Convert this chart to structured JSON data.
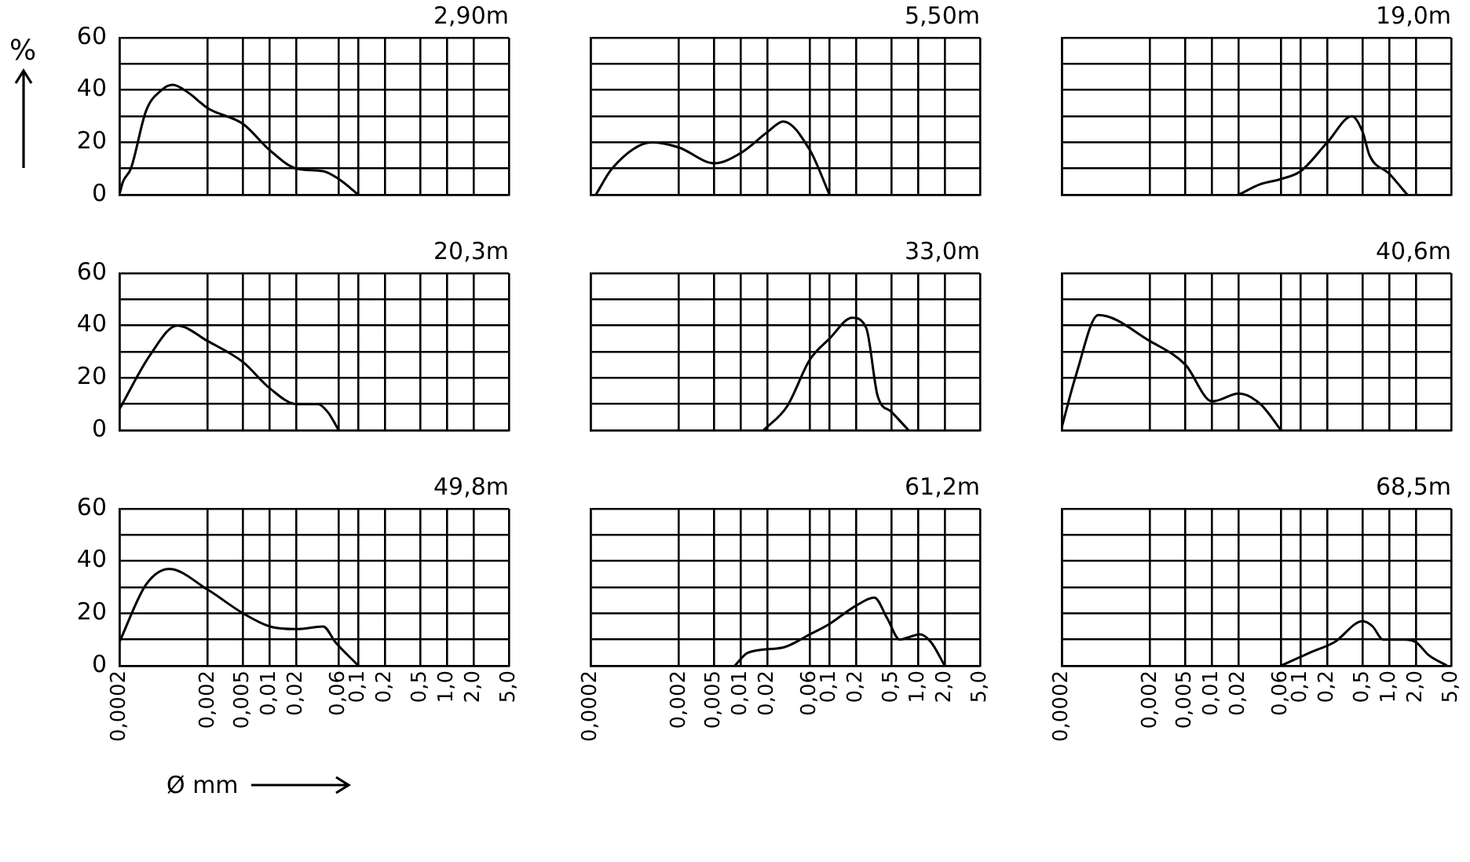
{
  "chart_data": [
    {
      "type": "line",
      "title": "2,90m",
      "ylabel": "%",
      "x": [
        0.0002,
        0.00022,
        0.00027,
        0.0004,
        0.0006,
        0.0008,
        0.0012,
        0.002,
        0.005,
        0.01,
        0.02,
        0.04,
        0.06,
        0.1
      ],
      "values": [
        0,
        5,
        10,
        32,
        40,
        42,
        39,
        33,
        27,
        17,
        10,
        9,
        6,
        0
      ],
      "color": "#000000",
      "marker": "none",
      "log": "x",
      "grid": true,
      "xlim": [
        0.0002,
        5
      ],
      "xticks": [
        {
          "value": 0.0002,
          "label": null
        },
        {
          "value": 0.002,
          "label": null
        },
        {
          "value": 0.005,
          "label": null
        },
        {
          "value": 0.01,
          "label": null
        },
        {
          "value": 0.02,
          "label": null
        },
        {
          "value": 0.06,
          "label": null
        },
        {
          "value": 0.1,
          "label": null
        },
        {
          "value": 0.2,
          "label": null
        },
        {
          "value": 0.5,
          "label": null
        },
        {
          "value": 1,
          "label": null
        },
        {
          "value": 2,
          "label": null
        },
        {
          "value": 5,
          "label": null
        }
      ],
      "ylim": [
        0,
        60
      ],
      "yticks": [
        0,
        {
          "value": 10,
          "label": null
        },
        20,
        {
          "value": 30,
          "label": null
        },
        40,
        {
          "value": 50,
          "label": null
        },
        60
      ],
      "tick_labels": "y"
    },
    {
      "type": "line",
      "title": "5,50m",
      "x": [
        0.00023,
        0.00035,
        0.001,
        0.002,
        0.005,
        0.01,
        0.02,
        0.03,
        0.06,
        0.1
      ],
      "values": [
        0,
        10,
        20,
        18,
        12,
        16,
        24,
        28,
        17,
        0
      ],
      "color": "#000000",
      "marker": "none",
      "log": "x",
      "grid": true,
      "xlim": [
        0.0002,
        5
      ],
      "xticks": [
        {
          "value": 0.0002,
          "label": null
        },
        {
          "value": 0.002,
          "label": null
        },
        {
          "value": 0.005,
          "label": null
        },
        {
          "value": 0.01,
          "label": null
        },
        {
          "value": 0.02,
          "label": null
        },
        {
          "value": 0.06,
          "label": null
        },
        {
          "value": 0.1,
          "label": null
        },
        {
          "value": 0.2,
          "label": null
        },
        {
          "value": 0.5,
          "label": null
        },
        {
          "value": 1,
          "label": null
        },
        {
          "value": 2,
          "label": null
        },
        {
          "value": 5,
          "label": null
        }
      ],
      "ylim": [
        0,
        60
      ],
      "yticks": [
        0,
        {
          "value": 10,
          "label": null
        },
        20,
        {
          "value": 30,
          "label": null
        },
        40,
        {
          "value": 50,
          "label": null
        },
        60
      ],
      "tick_labels": false
    },
    {
      "type": "line",
      "title": "19,0m",
      "x": [
        0.02,
        0.035,
        0.06,
        0.1,
        0.2,
        0.38,
        0.5,
        0.6,
        1,
        1.6
      ],
      "values": [
        0,
        4,
        6,
        9,
        20,
        30,
        24,
        15,
        8,
        0
      ],
      "color": "#000000",
      "marker": "none",
      "log": "x",
      "grid": true,
      "xlim": [
        0.0002,
        5
      ],
      "xticks": [
        {
          "value": 0.0002,
          "label": null
        },
        {
          "value": 0.002,
          "label": null
        },
        {
          "value": 0.005,
          "label": null
        },
        {
          "value": 0.01,
          "label": null
        },
        {
          "value": 0.02,
          "label": null
        },
        {
          "value": 0.06,
          "label": null
        },
        {
          "value": 0.1,
          "label": null
        },
        {
          "value": 0.2,
          "label": null
        },
        {
          "value": 0.5,
          "label": null
        },
        {
          "value": 1,
          "label": null
        },
        {
          "value": 2,
          "label": null
        },
        {
          "value": 5,
          "label": null
        }
      ],
      "ylim": [
        0,
        60
      ],
      "yticks": [
        0,
        {
          "value": 10,
          "label": null
        },
        20,
        {
          "value": 30,
          "label": null
        },
        40,
        {
          "value": 50,
          "label": null
        },
        60
      ],
      "tick_labels": false
    },
    {
      "type": "line",
      "title": "20,3m",
      "x": [
        0.0002,
        0.00045,
        0.0009,
        0.002,
        0.005,
        0.01,
        0.02,
        0.035,
        0.045,
        0.06
      ],
      "values": [
        8,
        29,
        40,
        34,
        26,
        16,
        10,
        10,
        7,
        0
      ],
      "color": "#000000",
      "marker": "none",
      "log": "x",
      "grid": true,
      "xlim": [
        0.0002,
        5
      ],
      "xticks": [
        {
          "value": 0.0002,
          "label": null
        },
        {
          "value": 0.002,
          "label": null
        },
        {
          "value": 0.005,
          "label": null
        },
        {
          "value": 0.01,
          "label": null
        },
        {
          "value": 0.02,
          "label": null
        },
        {
          "value": 0.06,
          "label": null
        },
        {
          "value": 0.1,
          "label": null
        },
        {
          "value": 0.2,
          "label": null
        },
        {
          "value": 0.5,
          "label": null
        },
        {
          "value": 1,
          "label": null
        },
        {
          "value": 2,
          "label": null
        },
        {
          "value": 5,
          "label": null
        }
      ],
      "ylim": [
        0,
        60
      ],
      "yticks": [
        0,
        {
          "value": 10,
          "label": null
        },
        20,
        {
          "value": 30,
          "label": null
        },
        40,
        {
          "value": 50,
          "label": null
        },
        60
      ],
      "tick_labels": "y"
    },
    {
      "type": "line",
      "title": "33,0m",
      "x": [
        0.018,
        0.033,
        0.06,
        0.1,
        0.18,
        0.26,
        0.35,
        0.5,
        0.78
      ],
      "values": [
        0,
        9,
        27,
        35,
        43,
        39,
        13,
        7,
        0
      ],
      "color": "#000000",
      "marker": "none",
      "log": "x",
      "grid": true,
      "xlim": [
        0.0002,
        5
      ],
      "xticks": [
        {
          "value": 0.0002,
          "label": null
        },
        {
          "value": 0.002,
          "label": null
        },
        {
          "value": 0.005,
          "label": null
        },
        {
          "value": 0.01,
          "label": null
        },
        {
          "value": 0.02,
          "label": null
        },
        {
          "value": 0.06,
          "label": null
        },
        {
          "value": 0.1,
          "label": null
        },
        {
          "value": 0.2,
          "label": null
        },
        {
          "value": 0.5,
          "label": null
        },
        {
          "value": 1,
          "label": null
        },
        {
          "value": 2,
          "label": null
        },
        {
          "value": 5,
          "label": null
        }
      ],
      "ylim": [
        0,
        60
      ],
      "yticks": [
        0,
        {
          "value": 10,
          "label": null
        },
        20,
        {
          "value": 30,
          "label": null
        },
        40,
        {
          "value": 50,
          "label": null
        },
        60
      ],
      "tick_labels": false
    },
    {
      "type": "line",
      "title": "40,6m",
      "x": [
        0.0002,
        0.00029,
        0.00052,
        0.002,
        0.005,
        0.01,
        0.02,
        0.035,
        0.06
      ],
      "values": [
        1,
        21,
        44,
        34,
        25,
        11,
        14,
        10,
        0
      ],
      "color": "#000000",
      "marker": "none",
      "log": "x",
      "grid": true,
      "xlim": [
        0.0002,
        5
      ],
      "xticks": [
        {
          "value": 0.0002,
          "label": null
        },
        {
          "value": 0.002,
          "label": null
        },
        {
          "value": 0.005,
          "label": null
        },
        {
          "value": 0.01,
          "label": null
        },
        {
          "value": 0.02,
          "label": null
        },
        {
          "value": 0.06,
          "label": null
        },
        {
          "value": 0.1,
          "label": null
        },
        {
          "value": 0.2,
          "label": null
        },
        {
          "value": 0.5,
          "label": null
        },
        {
          "value": 1,
          "label": null
        },
        {
          "value": 2,
          "label": null
        },
        {
          "value": 5,
          "label": null
        }
      ],
      "ylim": [
        0,
        60
      ],
      "yticks": [
        0,
        {
          "value": 10,
          "label": null
        },
        20,
        {
          "value": 30,
          "label": null
        },
        40,
        {
          "value": 50,
          "label": null
        },
        60
      ],
      "tick_labels": false
    },
    {
      "type": "line",
      "title": "49,8m",
      "xlabel": "Ø mm",
      "x": [
        0.0002,
        0.0004,
        0.00073,
        0.002,
        0.005,
        0.01,
        0.02,
        0.04,
        0.055,
        0.1
      ],
      "values": [
        9,
        31,
        37,
        29,
        20,
        15,
        14,
        15,
        9,
        0
      ],
      "color": "#000000",
      "marker": "none",
      "log": "x",
      "grid": true,
      "xlim": [
        0.0002,
        5
      ],
      "xticks": [
        {
          "value": 0.0002,
          "label": "0,0002"
        },
        {
          "value": 0.002,
          "label": "0,002"
        },
        {
          "value": 0.005,
          "label": "0,005"
        },
        {
          "value": 0.01,
          "label": "0,01"
        },
        {
          "value": 0.02,
          "label": "0,02"
        },
        {
          "value": 0.06,
          "label": "0,06"
        },
        {
          "value": 0.1,
          "label": "0,1"
        },
        {
          "value": 0.2,
          "label": "0,2"
        },
        {
          "value": 0.5,
          "label": "0,5"
        },
        {
          "value": 1,
          "label": "1,0"
        },
        {
          "value": 2,
          "label": "2,0"
        },
        {
          "value": 5,
          "label": "5,0"
        }
      ],
      "ylim": [
        0,
        60
      ],
      "yticks": [
        0,
        {
          "value": 10,
          "label": null
        },
        20,
        {
          "value": 30,
          "label": null
        },
        40,
        {
          "value": 50,
          "label": null
        },
        60
      ]
    },
    {
      "type": "line",
      "title": "61,2m",
      "x": [
        0.0085,
        0.012,
        0.03,
        0.06,
        0.1,
        0.2,
        0.32,
        0.45,
        0.62,
        0.8,
        1.05,
        1.4,
        2
      ],
      "values": [
        0,
        5,
        7,
        12,
        16,
        23,
        26,
        18,
        10,
        11,
        12,
        9,
        0
      ],
      "color": "#000000",
      "marker": "none",
      "log": "x",
      "grid": true,
      "xlim": [
        0.0002,
        5
      ],
      "xticks": [
        {
          "value": 0.0002,
          "label": "0,0002"
        },
        {
          "value": 0.002,
          "label": "0,002"
        },
        {
          "value": 0.005,
          "label": "0,005"
        },
        {
          "value": 0.01,
          "label": "0,01"
        },
        {
          "value": 0.02,
          "label": "0,02"
        },
        {
          "value": 0.06,
          "label": "0,06"
        },
        {
          "value": 0.1,
          "label": "0,1"
        },
        {
          "value": 0.2,
          "label": "0,2"
        },
        {
          "value": 0.5,
          "label": "0,5"
        },
        {
          "value": 1,
          "label": "1,0"
        },
        {
          "value": 2,
          "label": "2,0"
        },
        {
          "value": 5,
          "label": "5,0"
        }
      ],
      "ylim": [
        0,
        60
      ],
      "yticks": [
        0,
        {
          "value": 10,
          "label": null
        },
        20,
        {
          "value": 30,
          "label": null
        },
        40,
        {
          "value": 50,
          "label": null
        },
        60
      ],
      "tick_labels": "x"
    },
    {
      "type": "line",
      "title": "68,5m",
      "x": [
        0.06,
        0.127,
        0.24,
        0.5,
        0.65,
        0.85,
        1.5,
        2,
        2.8,
        4.5
      ],
      "values": [
        0,
        5,
        9,
        17,
        15,
        10,
        10,
        9,
        4,
        0
      ],
      "color": "#000000",
      "marker": "none",
      "log": "x",
      "grid": true,
      "xlim": [
        0.0002,
        5
      ],
      "xticks": [
        {
          "value": 0.0002,
          "label": "0,0002"
        },
        {
          "value": 0.002,
          "label": "0,002"
        },
        {
          "value": 0.005,
          "label": "0,005"
        },
        {
          "value": 0.01,
          "label": "0,01"
        },
        {
          "value": 0.02,
          "label": "0,02"
        },
        {
          "value": 0.06,
          "label": "0,06"
        },
        {
          "value": 0.1,
          "label": "0,1"
        },
        {
          "value": 0.2,
          "label": "0,2"
        },
        {
          "value": 0.5,
          "label": "0,5"
        },
        {
          "value": 1,
          "label": "1,0"
        },
        {
          "value": 2,
          "label": "2,0"
        },
        {
          "value": 5,
          "label": "5,0"
        }
      ],
      "ylim": [
        0,
        60
      ],
      "yticks": [
        0,
        {
          "value": 10,
          "label": null
        },
        20,
        {
          "value": 30,
          "label": null
        },
        40,
        {
          "value": 50,
          "label": null
        },
        60
      ],
      "tick_labels": "x"
    }
  ]
}
